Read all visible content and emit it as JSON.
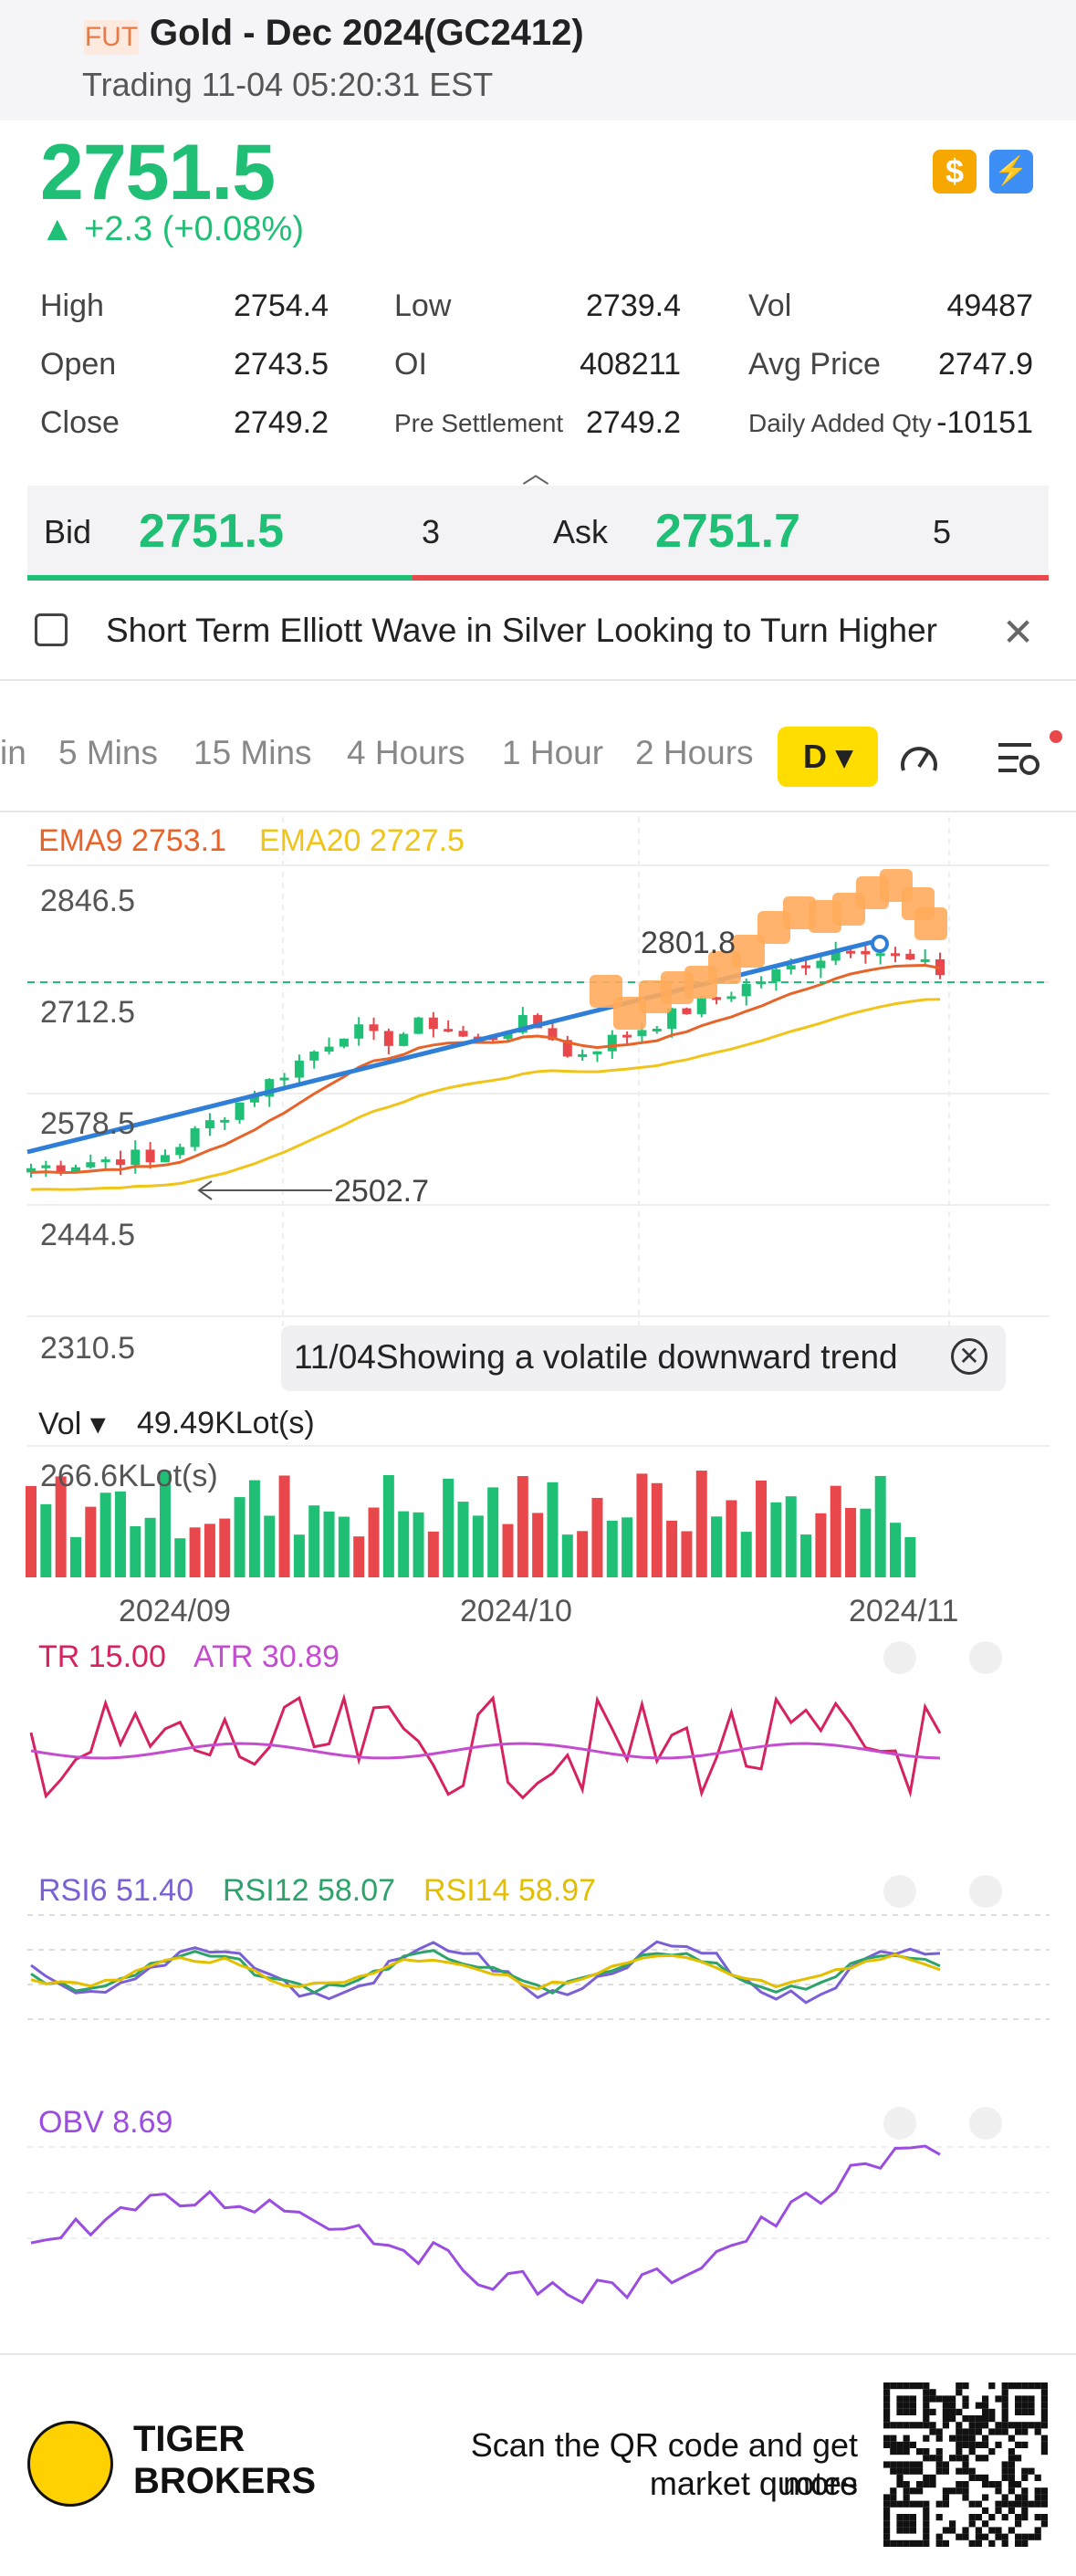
{
  "header": {
    "badge": "FUT",
    "title": "Gold - Dec 2024(GC2412)",
    "subtitle": "Trading 11-04 05:20:31 EST"
  },
  "quote": {
    "price": "2751.5",
    "change": "▲ +2.3 (+0.08%)",
    "icons": [
      "dollar-icon",
      "bolt-icon"
    ]
  },
  "stats": {
    "high_label": "High",
    "high": "2754.4",
    "low_label": "Low",
    "low": "2739.4",
    "vol_label": "Vol",
    "vol": "49487",
    "open_label": "Open",
    "open": "2743.5",
    "oi_label": "OI",
    "oi": "408211",
    "avg_label": "Avg Price",
    "avg": "2747.9",
    "close_label": "Close",
    "close": "2749.2",
    "pre_label": "Pre Settlement",
    "pre": "2749.2",
    "daq_label": "Daily Added Qty",
    "daq": "-10151"
  },
  "bidask": {
    "bid_label": "Bid",
    "bid": "2751.5",
    "bid_qty": "3",
    "ask_label": "Ask",
    "ask": "2751.7",
    "ask_qty": "5"
  },
  "news": {
    "text": "Short Term Elliott Wave in Silver Looking to Turn Higher"
  },
  "tabs": [
    "in",
    "5 Mins",
    "15 Mins",
    "4 Hours",
    "1 Hour",
    "2 Hours"
  ],
  "active_tab": "D",
  "chart": {
    "ema9": "EMA9 2753.1",
    "ema20": "EMA20 2727.5",
    "y_ticks": [
      "2846.5",
      "2712.5",
      "2578.5",
      "2444.5",
      "2310.5"
    ],
    "high_marker": "2801.8",
    "low_marker": "2502.7",
    "tip": "11/04Showing a volatile downward trend",
    "vol_label": "Vol ▾",
    "vol_value": "49.49KLot(s)",
    "vol_max": "266.6KLot(s)",
    "x_ticks": [
      "2024/09",
      "2024/10",
      "2024/11"
    ],
    "tr": "TR 15.00",
    "atr": "ATR 30.89",
    "rsi6": "RSI6 51.40",
    "rsi12": "RSI12 58.07",
    "rsi14": "RSI14 58.97",
    "obv": "OBV 8.69"
  },
  "colors": {
    "up": "#1fbf75",
    "down": "#e8484c",
    "ema9": "#e8632a",
    "ema20": "#f0c419",
    "trend": "#2f7ed8"
  },
  "footer": {
    "brand_line1": "TIGER",
    "brand_line2": "BROKERS",
    "qr_line1": "Scan the QR code and get more",
    "qr_line2": "market quotes"
  }
}
